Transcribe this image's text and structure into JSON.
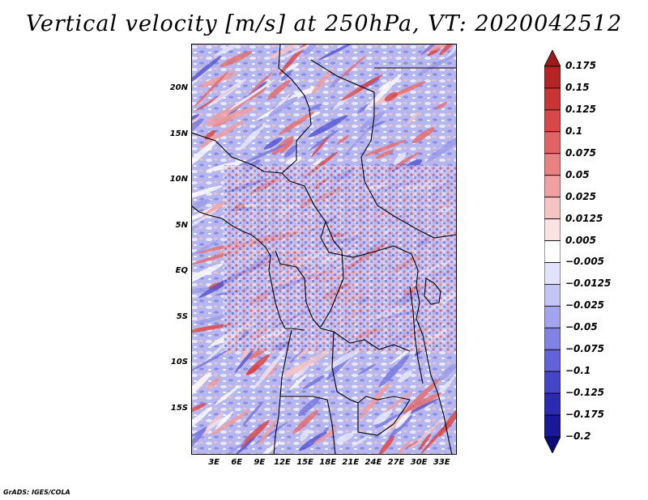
{
  "title": "Vertical velocity [m/s] at 250hPa, VT: 2020042512",
  "footer": "GrADS: IGES/COLA",
  "map": {
    "variable": "Vertical velocity",
    "units": "m/s",
    "level": "250hPa",
    "valid_time": "2020042512",
    "lon_range": [
      0,
      35
    ],
    "lat_range": [
      -20,
      25
    ],
    "y_ticks": [
      {
        "lat": 20,
        "label": "20N"
      },
      {
        "lat": 15,
        "label": "15N"
      },
      {
        "lat": 10,
        "label": "10N"
      },
      {
        "lat": 5,
        "label": "5N"
      },
      {
        "lat": 0,
        "label": "EQ"
      },
      {
        "lat": -5,
        "label": "5S"
      },
      {
        "lat": -10,
        "label": "10S"
      },
      {
        "lat": -15,
        "label": "15S"
      }
    ],
    "x_ticks": [
      {
        "lon": 3,
        "label": "3E"
      },
      {
        "lon": 6,
        "label": "6E"
      },
      {
        "lon": 9,
        "label": "9E"
      },
      {
        "lon": 12,
        "label": "12E"
      },
      {
        "lon": 15,
        "label": "15E"
      },
      {
        "lon": 18,
        "label": "18E"
      },
      {
        "lon": 21,
        "label": "21E"
      },
      {
        "lon": 24,
        "label": "24E"
      },
      {
        "lon": 27,
        "label": "27E"
      },
      {
        "lon": 30,
        "label": "30E"
      },
      {
        "lon": 33,
        "label": "33E"
      }
    ]
  },
  "colorbar": {
    "labels": [
      "0.175",
      "0.15",
      "0.125",
      "0.1",
      "0.075",
      "0.05",
      "0.025",
      "0.0125",
      "0.005",
      "−0.005",
      "−0.0125",
      "−0.025",
      "−0.05",
      "−0.075",
      "−0.1",
      "−0.125",
      "−0.175",
      "−0.2"
    ],
    "colors": [
      "#9e1a1a",
      "#b52525",
      "#c83535",
      "#d84848",
      "#e26363",
      "#ea8080",
      "#f0a0a0",
      "#f6c3c3",
      "#fbe3e3",
      "#ffffff",
      "#e2e2fb",
      "#c4c4f5",
      "#a3a3ee",
      "#8282e5",
      "#6262d9",
      "#4545c8",
      "#2b2bb2",
      "#181898",
      "#0b0b7a"
    ]
  },
  "colors": {
    "positive": "#d64040",
    "negative": "#5050d8",
    "background_field": "#b8b8f0",
    "coast": "#000000"
  }
}
